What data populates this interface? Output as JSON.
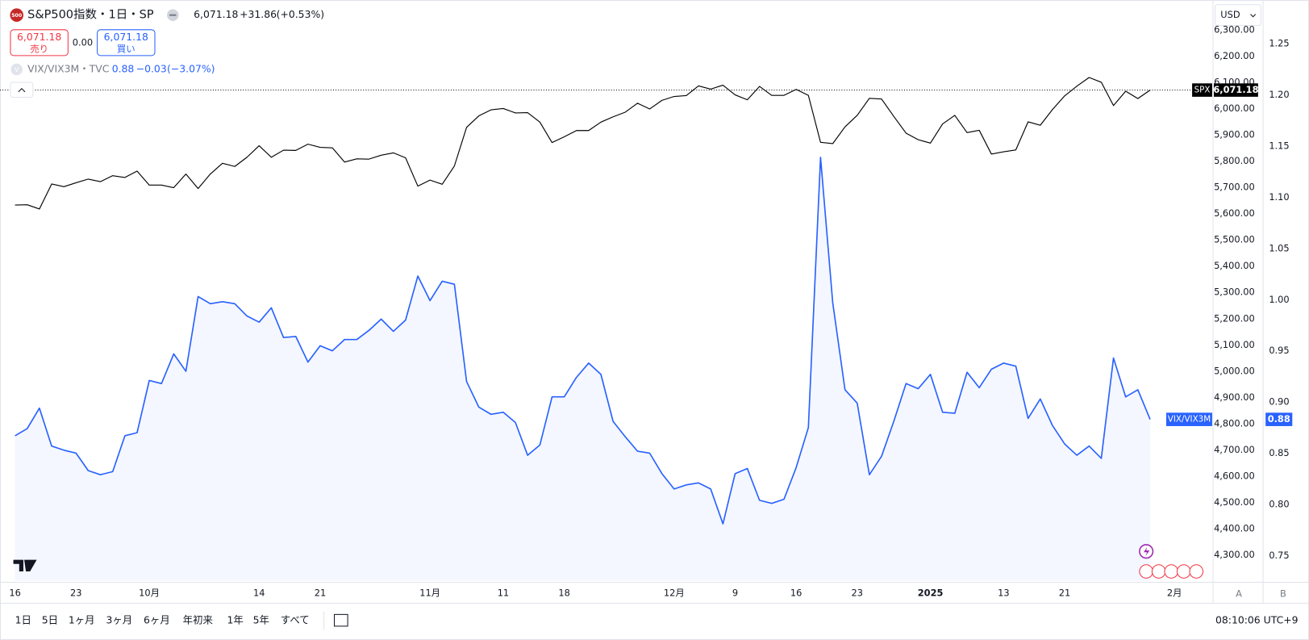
{
  "header": {
    "logo": "500",
    "title": "S&P500指数・1日・SP",
    "price": "6,071.18",
    "change": "+31.86",
    "change_pct": "(+0.53%)",
    "sell_price": "6,071.18",
    "sell": "売り",
    "spread": "0.00",
    "buy_price": "6,071.18",
    "buy": "買い",
    "study_icon": "V",
    "study": "VIX/VIX3M・TVC",
    "study_value": "0.88",
    "study_change": "−0.03",
    "study_change_pct": "(−3.07%)",
    "currency": "USD",
    "scale_a": "A",
    "scale_b": "B"
  },
  "toolbar": {
    "ranges": [
      "1日",
      "5日",
      "1ヶ月",
      "3ヶ月",
      "6ヶ月",
      "年初来",
      "1年",
      "5年",
      "すべて"
    ],
    "clock": "08:10:06 UTC+9"
  },
  "chart_data": {
    "type": "line",
    "categories": [
      "16",
      null,
      null,
      null,
      null,
      "23",
      null,
      null,
      null,
      null,
      null,
      "10月",
      null,
      null,
      null,
      null,
      null,
      null,
      null,
      null,
      "14",
      null,
      null,
      null,
      null,
      "21",
      null,
      null,
      null,
      null,
      null,
      null,
      null,
      null,
      "11月",
      null,
      null,
      null,
      null,
      null,
      "11",
      null,
      null,
      null,
      null,
      "18",
      null,
      null,
      null,
      null,
      null,
      null,
      null,
      null,
      "12月",
      null,
      null,
      null,
      null,
      "9",
      null,
      null,
      null,
      null,
      "16",
      null,
      null,
      null,
      null,
      "23",
      null,
      null,
      null,
      null,
      null,
      "2025",
      null,
      null,
      null,
      null,
      null,
      "13",
      null,
      null,
      null,
      null,
      "21",
      null,
      null,
      null,
      null,
      null,
      null,
      null,
      null,
      "2月"
    ],
    "series": [
      {
        "name": "SPX",
        "color": "#000000",
        "last_label": "6,071.18",
        "values": [
          5633,
          5634,
          5618,
          5713,
          5703,
          5718,
          5732,
          5722,
          5745,
          5738,
          5762,
          5709,
          5709,
          5699,
          5751,
          5696,
          5751,
          5792,
          5780,
          5815,
          5859,
          5815,
          5842,
          5841,
          5865,
          5853,
          5851,
          5797,
          5809,
          5808,
          5823,
          5832,
          5813,
          5705,
          5728,
          5712,
          5782,
          5929,
          5973,
          5996,
          6001,
          5984,
          5985,
          5949,
          5871,
          5893,
          5917,
          5917,
          5949,
          5969,
          5987,
          6021,
          5999,
          6032,
          6047,
          6050,
          6087,
          6075,
          6090,
          6053,
          6034,
          6085,
          6051,
          6051,
          6074,
          6051,
          5872,
          5867,
          5931,
          5975,
          6040,
          6037,
          5971,
          5907,
          5882,
          5869,
          5942,
          5975,
          5909,
          5918,
          5827,
          5836,
          5843,
          5950,
          5937,
          5997,
          6049,
          6086,
          6119,
          6101,
          6012,
          6067,
          6039,
          6071.18,
          null,
          null
        ]
      },
      {
        "name": "VIX/VIX3M",
        "color": "#2962ff",
        "axis": "y2",
        "last_label": "0.88",
        "values": [
          0.867,
          0.874,
          0.894,
          0.857,
          0.853,
          0.85,
          0.833,
          0.829,
          0.832,
          0.867,
          0.87,
          0.921,
          0.918,
          0.947,
          0.93,
          1.003,
          0.996,
          0.998,
          0.996,
          0.984,
          0.978,
          0.992,
          0.963,
          0.964,
          0.939,
          0.955,
          0.95,
          0.961,
          0.961,
          0.97,
          0.981,
          0.969,
          0.98,
          1.023,
          0.999,
          1.018,
          1.015,
          0.92,
          0.895,
          0.888,
          0.89,
          0.88,
          0.848,
          0.858,
          0.905,
          0.905,
          0.924,
          0.938,
          0.927,
          0.881,
          0.866,
          0.852,
          0.85,
          0.83,
          0.815,
          0.819,
          0.821,
          0.815,
          0.781,
          0.83,
          0.835,
          0.804,
          0.801,
          0.805,
          0.836,
          0.875,
          1.139,
          0.997,
          0.912,
          0.899,
          0.829,
          0.847,
          0.881,
          0.918,
          0.913,
          0.927,
          0.89,
          0.889,
          0.929,
          0.914,
          0.932,
          0.938,
          0.935,
          0.884,
          0.903,
          0.877,
          0.859,
          0.848,
          0.857,
          0.845,
          0.943,
          0.905,
          0.912,
          0.883,
          null,
          null
        ]
      }
    ],
    "ylim": [
      4201,
      6408
    ],
    "yticks": [
      {
        "value": 4300,
        "label": "4,300.00"
      },
      {
        "value": 4400,
        "label": "4,400.00"
      },
      {
        "value": 4500,
        "label": "4,500.00"
      },
      {
        "value": 4600,
        "label": "4,600.00"
      },
      {
        "value": 4700,
        "label": "4,700.00"
      },
      {
        "value": 4800,
        "label": "4,800.00"
      },
      {
        "value": 4900,
        "label": "4,900.00"
      },
      {
        "value": 5000,
        "label": "5,000.00"
      },
      {
        "value": 5100,
        "label": "5,100.00"
      },
      {
        "value": 5200,
        "label": "5,200.00"
      },
      {
        "value": 5300,
        "label": "5,300.00"
      },
      {
        "value": 5400,
        "label": "5,400.00"
      },
      {
        "value": 5500,
        "label": "5,500.00"
      },
      {
        "value": 5600,
        "label": "5,600.00"
      },
      {
        "value": 5700,
        "label": "5,700.00"
      },
      {
        "value": 5800,
        "label": "5,800.00"
      },
      {
        "value": 5900,
        "label": "5,900.00"
      },
      {
        "value": 6000,
        "label": "6,000.00"
      },
      {
        "value": 6100,
        "label": "6,100.00"
      },
      {
        "value": 6200,
        "label": "6,200.00"
      },
      {
        "value": 6300,
        "label": "6,300.00"
      }
    ],
    "y2lim": [
      0.7255,
      1.291
    ],
    "y2ticks": [
      0.75,
      {
        "value": 0.8,
        "label": "0.80"
      },
      0.85,
      {
        "value": 0.9,
        "label": "0.90"
      },
      0.95,
      {
        "value": 1.0,
        "label": "1.00"
      },
      1.05,
      {
        "value": 1.1,
        "label": "1.10"
      },
      1.15,
      {
        "value": 1.2,
        "label": "1.20"
      },
      1.25
    ],
    "grid": false
  }
}
